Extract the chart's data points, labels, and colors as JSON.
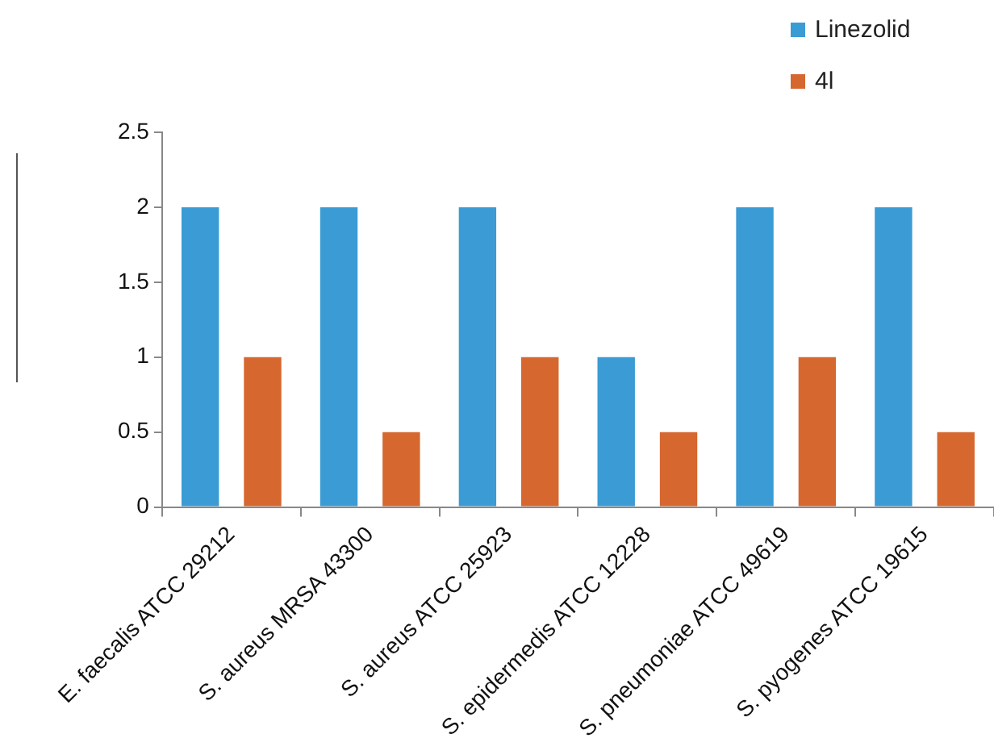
{
  "chart_data": {
    "type": "bar",
    "categories": [
      "E. faecalis ATCC 29212",
      "S. aureus MRSA 43300",
      "S. aureus ATCC 25923",
      "S. epidermedis ATCC 12228",
      "S. pneumoniae ATCC 49619",
      "S. pyogenes ATCC 19615"
    ],
    "series": [
      {
        "name": "Linezolid",
        "color": "#3a9bd5",
        "values": [
          2,
          2,
          2,
          1,
          2,
          2
        ]
      },
      {
        "name": "4l",
        "color": "#d5672f",
        "values": [
          1,
          0.5,
          1,
          0.5,
          1,
          0.5
        ]
      }
    ],
    "ylim": [
      0,
      2.5
    ],
    "yticks": [
      0,
      0.5,
      1,
      1.5,
      2,
      2.5
    ],
    "grid": false,
    "legend": "top right"
  }
}
